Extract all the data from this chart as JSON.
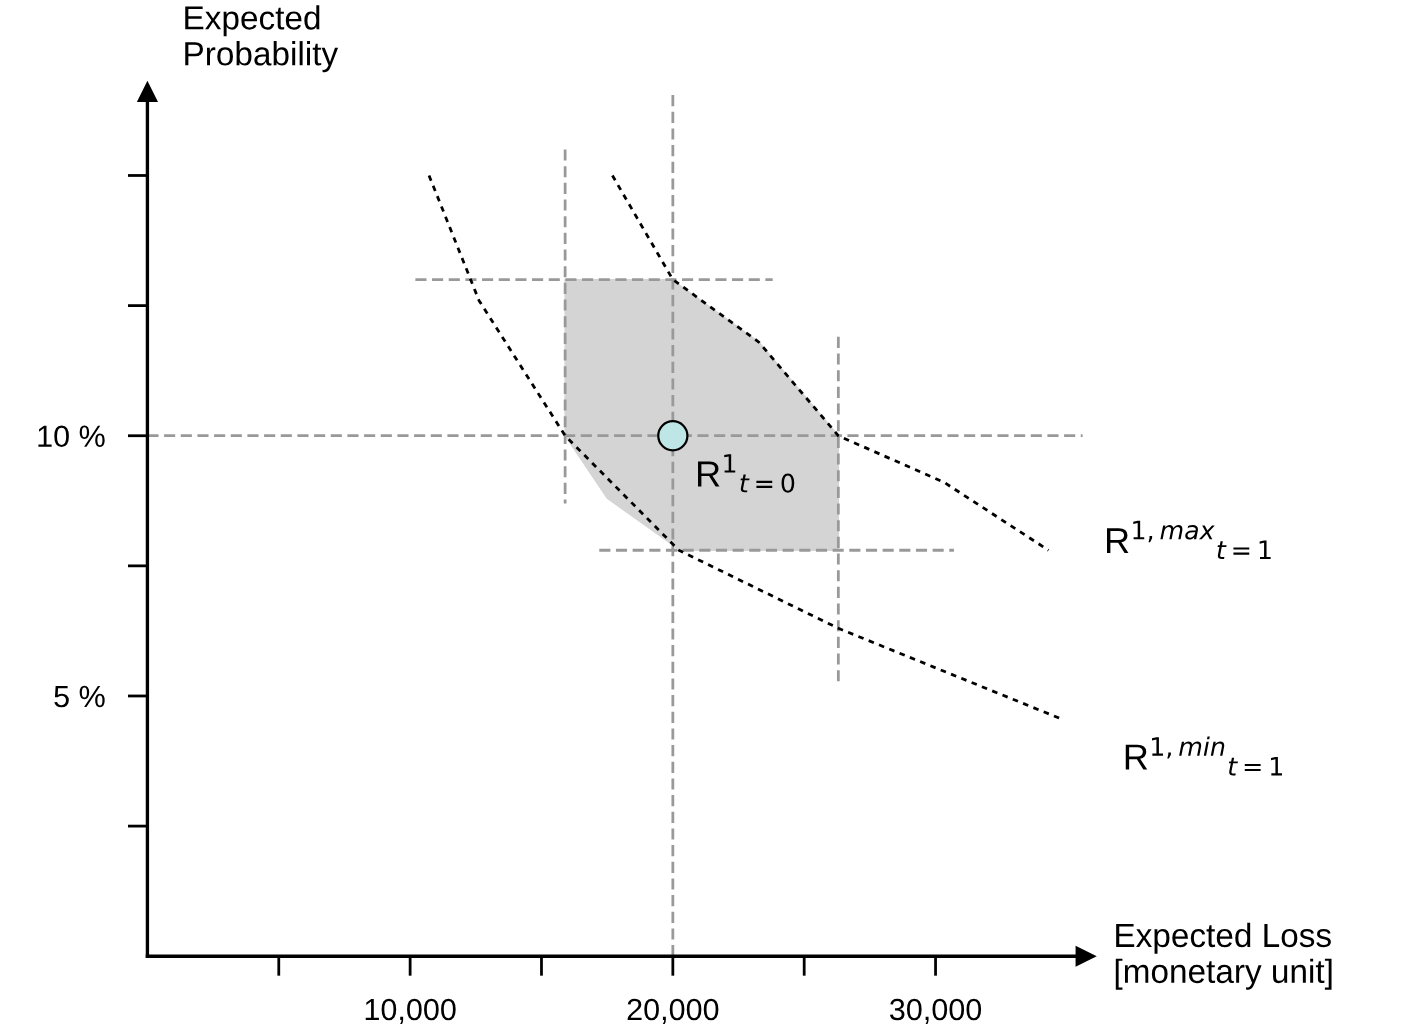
{
  "chart_data": {
    "type": "line",
    "xlabel": "Expected Loss\n[monetary unit]",
    "ylabel": "Expected\nProbability",
    "xlim": [
      0,
      35700
    ],
    "ylim": [
      0,
      16.6
    ],
    "xticks": [
      {
        "value": 5000,
        "label": null
      },
      {
        "value": 10000,
        "label": "10,000"
      },
      {
        "value": 15000,
        "label": null
      },
      {
        "value": 20000,
        "label": "20,000"
      },
      {
        "value": 25000,
        "label": null
      },
      {
        "value": 30000,
        "label": "30,000"
      }
    ],
    "yticks": [
      {
        "value": 2.5,
        "label": null
      },
      {
        "value": 5,
        "label": "5 %"
      },
      {
        "value": 7.5,
        "label": null
      },
      {
        "value": 10,
        "label": "10 %"
      },
      {
        "value": 12.5,
        "label": null
      },
      {
        "value": 15,
        "label": null
      }
    ],
    "grid": false,
    "legend": false,
    "series": [
      {
        "type": "line",
        "color": "#d4d4d4",
        "x": [
          15900,
          17500,
          20000,
          20230,
          23270,
          26300
        ],
        "values": [
          null,
          null,
          null,
          null,
          null,
          null
        ],
        "upper": [
          13.0,
          13.0,
          13.0,
          12.9,
          11.8,
          10.0
        ],
        "lower": [
          10.0,
          8.8,
          7.9,
          7.8,
          7.8,
          7.8
        ]
      },
      {
        "type": "line",
        "color": "#999999",
        "line_style": "dashed",
        "marker": "none",
        "x": [
          0,
          35600
        ],
        "values": [
          10.0,
          10.0
        ]
      },
      {
        "type": "line",
        "color": "#999999",
        "line_style": "dashed",
        "marker": "none",
        "x": [
          20000,
          20000
        ],
        "values": [
          0,
          16.55
        ]
      },
      {
        "type": "line",
        "color": "#999999",
        "line_style": "dashed",
        "marker": "none",
        "x": [
          15900,
          15900
        ],
        "values": [
          15.5,
          8.7
        ]
      },
      {
        "type": "line",
        "color": "#999999",
        "line_style": "dashed",
        "marker": "none",
        "x": [
          26300,
          26300
        ],
        "values": [
          11.9,
          5.2
        ]
      },
      {
        "type": "line",
        "color": "#999999",
        "line_style": "dashed",
        "marker": "none",
        "x": [
          10200,
          23800
        ],
        "values": [
          13.0,
          13.0
        ]
      },
      {
        "type": "line",
        "color": "#999999",
        "line_style": "dashed",
        "marker": "none",
        "x": [
          17200,
          30700
        ],
        "values": [
          7.8,
          7.8
        ]
      },
      {
        "type": "line",
        "color": "#000000",
        "line_style": "dotted",
        "marker": "none",
        "x": [
          17700,
          20000,
          23270,
          26300,
          30340,
          34300
        ],
        "values": [
          15.0,
          13.0,
          11.8,
          10.0,
          9.1,
          7.8
        ]
      },
      {
        "type": "line",
        "color": "#000000",
        "line_style": "dotted",
        "marker": "none",
        "x": [
          10720,
          12620,
          15900,
          20230,
          26300,
          34830
        ],
        "values": [
          15.0,
          12.6,
          10.0,
          7.8,
          6.3,
          4.55
        ]
      },
      {
        "type": "scatter",
        "color": "#bfe6e6",
        "marker": "circle",
        "x": [
          20000
        ],
        "values": [
          10.0
        ]
      }
    ],
    "annotations": [
      {
        "text": "R$^{1}$$_{t=0}$",
        "x": 20000,
        "y": 10.0
      },
      "R$^{1,max}$$_{t=1}$",
      "R$^{1,min}$$_{t=1}$"
    ]
  }
}
